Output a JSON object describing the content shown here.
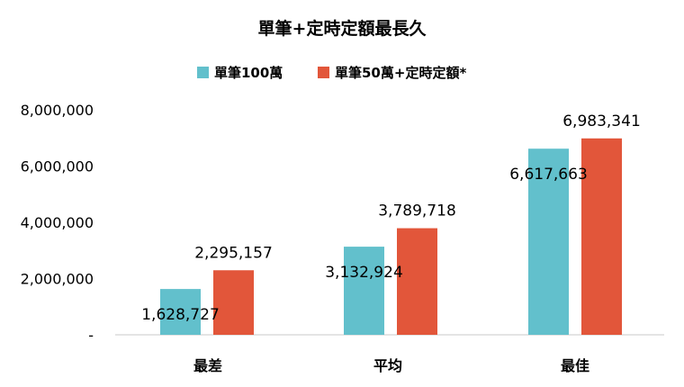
{
  "chart_data": {
    "type": "bar",
    "title": "單筆+定時定額最長久",
    "categories": [
      "最差",
      "平均",
      "最佳"
    ],
    "series": [
      {
        "name": "單筆100萬",
        "color": "#62c0cc",
        "values": [
          1628727,
          3132924,
          6617663
        ],
        "labels": [
          "1,628,727",
          "3,132,924",
          "6,617,663"
        ]
      },
      {
        "name": "單筆50萬+定時定額*",
        "color": "#e2563a",
        "values": [
          2295157,
          3789718,
          6983341
        ],
        "labels": [
          "2,295,157",
          "3,789,718",
          "6,983,341"
        ]
      }
    ],
    "ylim": [
      0,
      8000000
    ],
    "yticks": [
      0,
      2000000,
      4000000,
      6000000,
      8000000
    ],
    "ytick_labels": [
      "-",
      "2,000,000",
      "4,000,000",
      "6,000,000",
      "8,000,000"
    ],
    "xlabel": "",
    "ylabel": "",
    "grid": false,
    "legend_position": "top"
  }
}
